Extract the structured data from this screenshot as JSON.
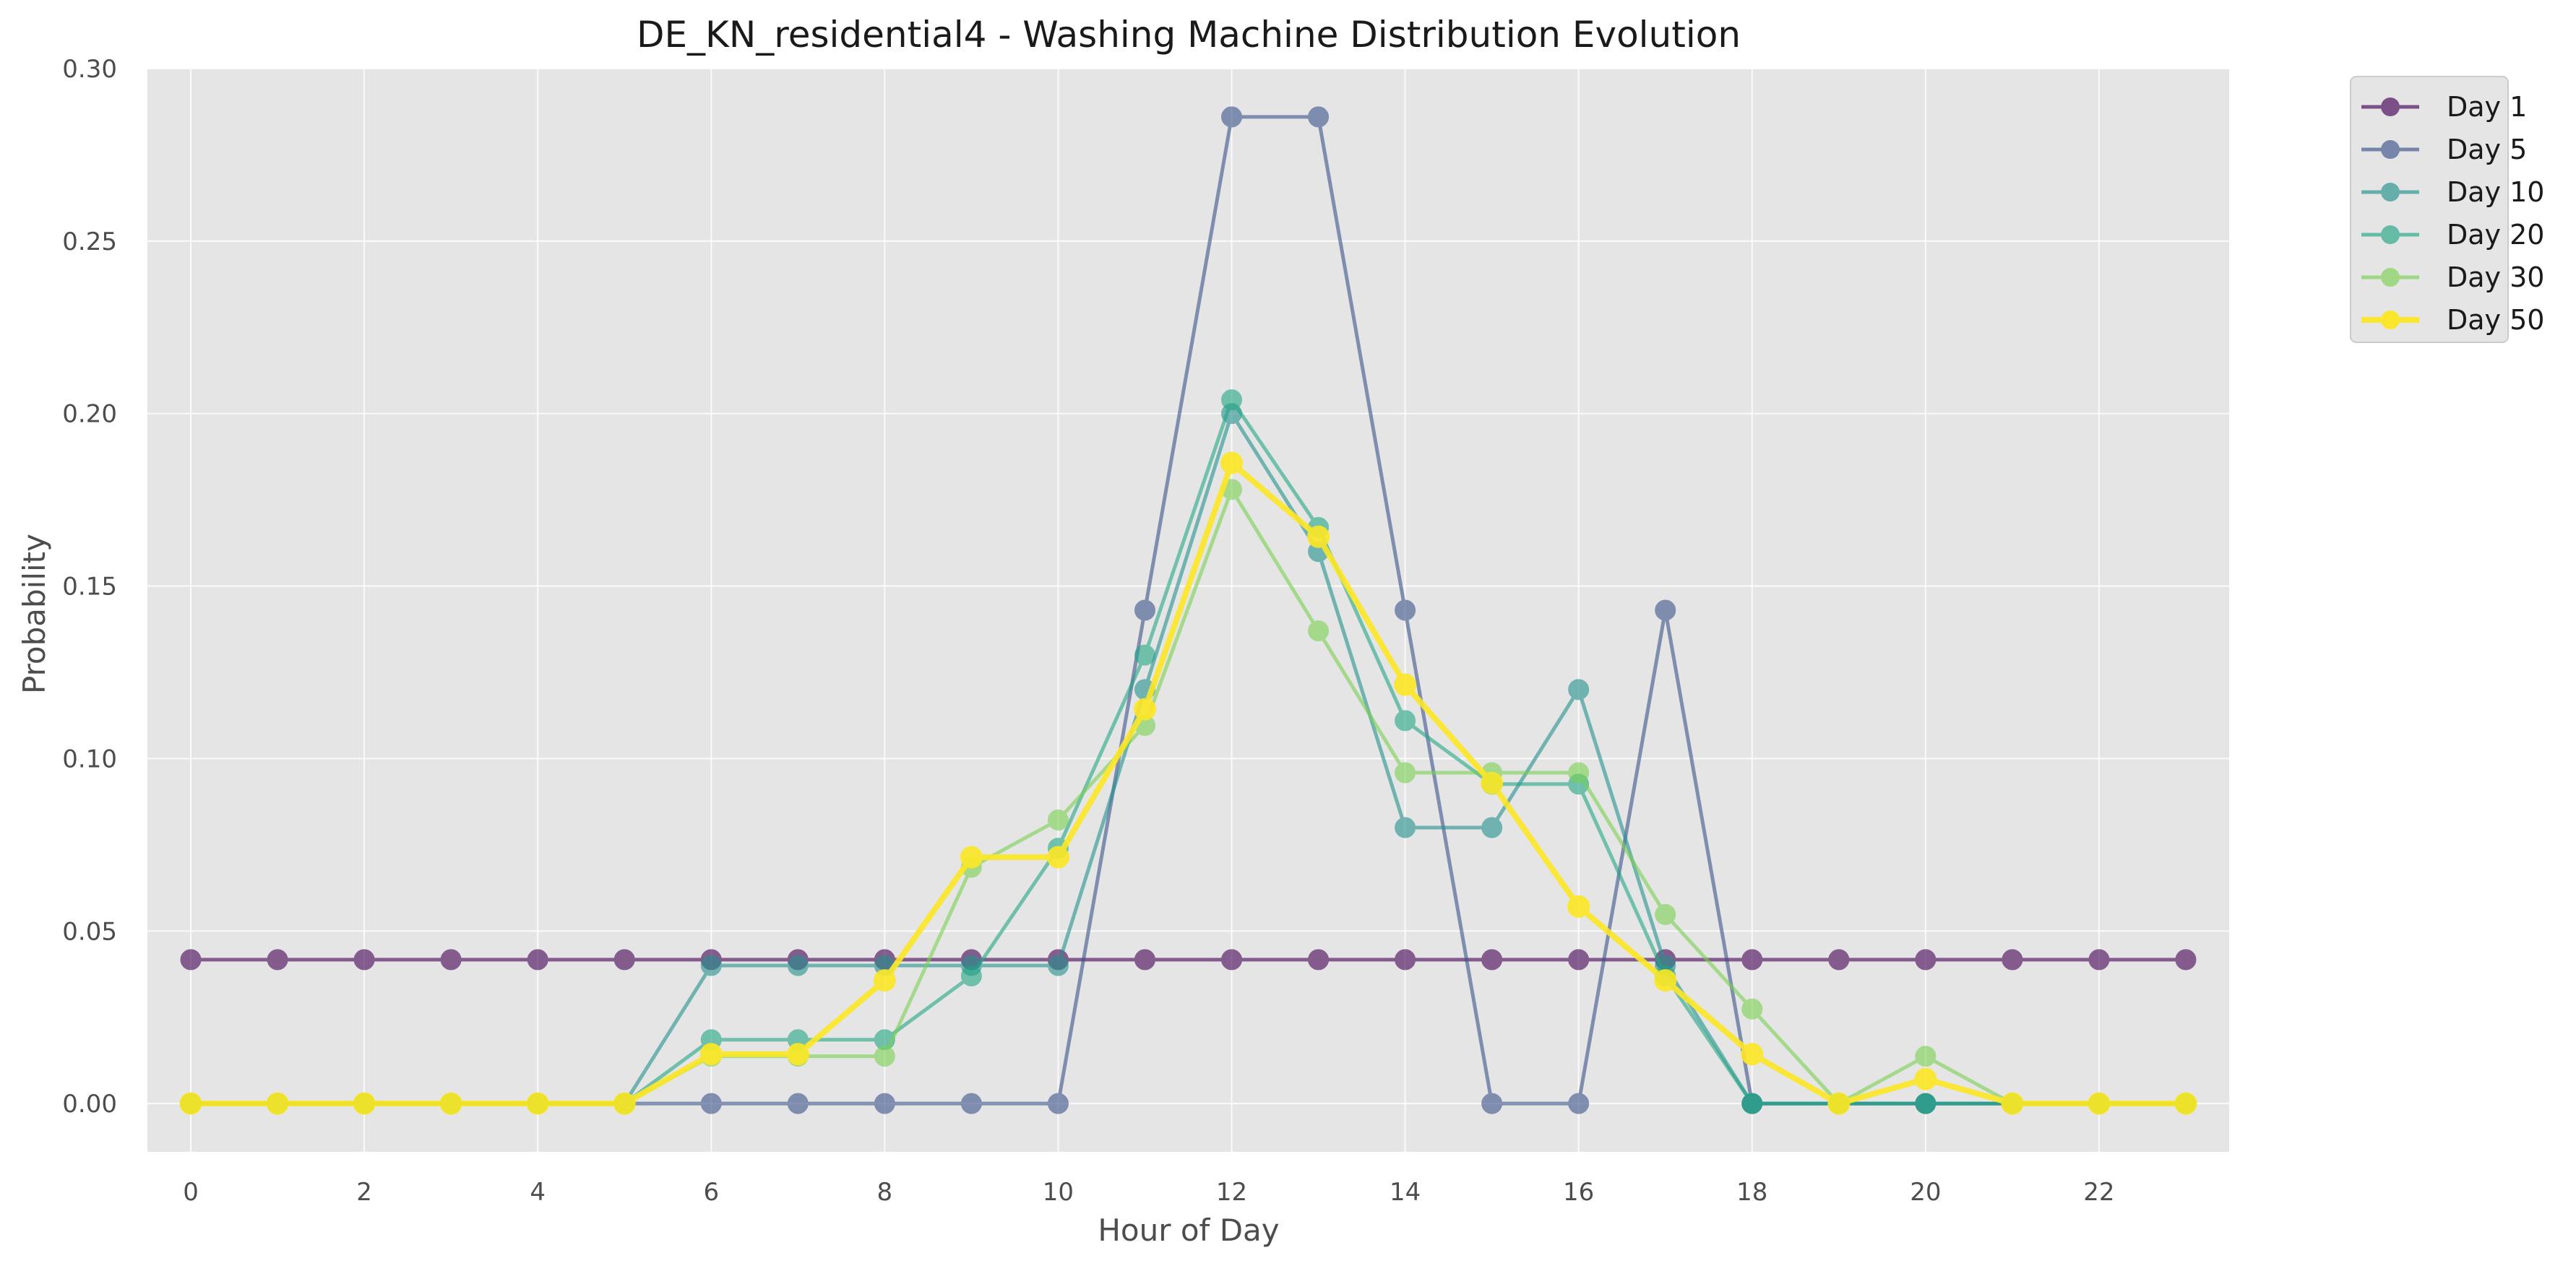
{
  "chart_data": {
    "type": "line",
    "title": "DE_KN_residential4 - Washing Machine Distribution Evolution",
    "xlabel": "Hour of Day",
    "ylabel": "Probability",
    "xlim": [
      -0.5,
      23.5
    ],
    "ylim": [
      -0.014,
      0.3
    ],
    "x_ticks": [
      0,
      2,
      4,
      6,
      8,
      10,
      12,
      14,
      16,
      18,
      20,
      22
    ],
    "x_tick_labels": [
      "0",
      "2",
      "4",
      "6",
      "8",
      "10",
      "12",
      "14",
      "16",
      "18",
      "20",
      "22"
    ],
    "y_ticks": [
      0.0,
      0.05,
      0.1,
      0.15,
      0.2,
      0.25,
      0.3
    ],
    "y_tick_labels": [
      "0.00",
      "0.05",
      "0.10",
      "0.15",
      "0.20",
      "0.25",
      "0.30"
    ],
    "grid": true,
    "legend_position": "outside top-right",
    "x": [
      0,
      1,
      2,
      3,
      4,
      5,
      6,
      7,
      8,
      9,
      10,
      11,
      12,
      13,
      14,
      15,
      16,
      17,
      18,
      19,
      20,
      21,
      22,
      23
    ],
    "series": [
      {
        "name": "Day 1",
        "color": "#440154",
        "values": [
          0.0417,
          0.0417,
          0.0417,
          0.0417,
          0.0417,
          0.0417,
          0.0417,
          0.0417,
          0.0417,
          0.0417,
          0.0417,
          0.0417,
          0.0417,
          0.0417,
          0.0417,
          0.0417,
          0.0417,
          0.0417,
          0.0417,
          0.0417,
          0.0417,
          0.0417,
          0.0417,
          0.0417
        ]
      },
      {
        "name": "Day 5",
        "color": "#3b528b",
        "values": [
          0,
          0,
          0,
          0,
          0,
          0,
          0,
          0,
          0,
          0,
          0,
          0.143,
          0.286,
          0.286,
          0.143,
          0,
          0,
          0.143,
          0,
          0,
          0,
          0,
          0,
          0
        ]
      },
      {
        "name": "Day 10",
        "color": "#21918c",
        "values": [
          0,
          0,
          0,
          0,
          0,
          0,
          0.04,
          0.04,
          0.04,
          0.04,
          0.04,
          0.12,
          0.2,
          0.16,
          0.08,
          0.08,
          0.12,
          0.04,
          0,
          0,
          0,
          0,
          0,
          0
        ]
      },
      {
        "name": "Day 20",
        "color": "#21a685",
        "values": [
          0,
          0,
          0,
          0,
          0,
          0,
          0.0185,
          0.0185,
          0.0185,
          0.037,
          0.074,
          0.13,
          0.204,
          0.167,
          0.111,
          0.0926,
          0.0926,
          0.037,
          0,
          0,
          0,
          0,
          0,
          0
        ]
      },
      {
        "name": "Day 30",
        "color": "#7ad151",
        "values": [
          0,
          0,
          0,
          0,
          0,
          0,
          0.0137,
          0.0137,
          0.0137,
          0.0685,
          0.0822,
          0.1096,
          0.178,
          0.137,
          0.0959,
          0.0959,
          0.0959,
          0.0548,
          0.0274,
          0,
          0.0137,
          0,
          0,
          0
        ]
      },
      {
        "name": "Day 50",
        "color": "#fde725",
        "values": [
          0,
          0,
          0,
          0,
          0,
          0,
          0.0143,
          0.0143,
          0.0357,
          0.0714,
          0.0714,
          0.1143,
          0.1857,
          0.1643,
          0.1214,
          0.0929,
          0.0571,
          0.0357,
          0.0143,
          0,
          0.0071,
          0,
          0,
          0
        ]
      }
    ]
  }
}
